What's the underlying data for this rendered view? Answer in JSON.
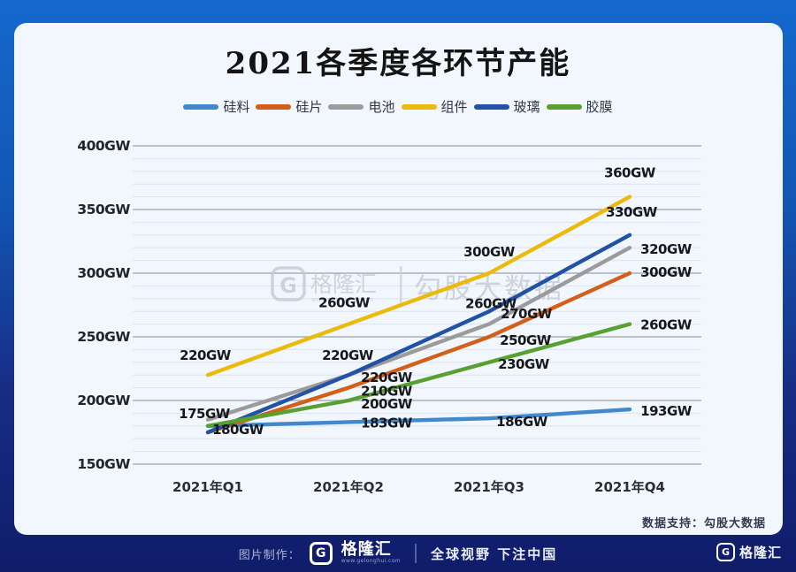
{
  "title": "2021各季度各环节产能",
  "source_note": "数据支持：勾股大数据",
  "frame": {
    "border_top_color": "#1568cd",
    "border_bottom_color": "#101c6a",
    "card_bg": "#f2f7fd",
    "footer_bg": "#111c6d"
  },
  "watermark": {
    "logo_letter": "G",
    "brand": "格隆汇",
    "url": "www.gelonghui.com",
    "text": "勾股大数据"
  },
  "footer": {
    "made_by": "图片制作：",
    "logo_letter": "G",
    "brand": "格隆汇",
    "brand_url": "www.gelonghui.com",
    "slogan": "全球视野 下注中国",
    "corner_logo_letter": "G",
    "corner_brand": "格隆汇"
  },
  "chart_data": {
    "type": "line",
    "title": "2021各季度各环节产能",
    "unit": "GW",
    "categories": [
      "2021年Q1",
      "2021年Q2",
      "2021年Q3",
      "2021年Q4"
    ],
    "ylim": [
      150,
      400
    ],
    "minor_grid_step": 10,
    "grid": true,
    "legend_position": "top",
    "y_ticks": [
      {
        "value": 400,
        "label": "400GW"
      },
      {
        "value": 350,
        "label": "350GW"
      },
      {
        "value": 300,
        "label": "300GW"
      },
      {
        "value": 250,
        "label": "250GW"
      },
      {
        "value": 200,
        "label": "200GW"
      },
      {
        "value": 150,
        "label": "150GW"
      }
    ],
    "series": [
      {
        "name": "硅料",
        "color": "#4189cc",
        "values": [
          180,
          183,
          186,
          193
        ],
        "point_labels": [
          {
            "text": "180GW",
            "dx": 34,
            "dy": 4
          },
          {
            "text": "183GW",
            "dx": 43,
            "dy": 1
          },
          {
            "text": "186GW",
            "dx": 37,
            "dy": 4
          },
          {
            "text": "193GW",
            "dx": 41,
            "dy": 2
          }
        ]
      },
      {
        "name": "硅片",
        "color": "#d2601a",
        "values": [
          175,
          210,
          250,
          300
        ],
        "point_labels": [
          {
            "text": "175GW",
            "dx": -4,
            "dy": -21
          },
          {
            "text": "210GW",
            "dx": 43,
            "dy": 4
          },
          {
            "text": "250GW",
            "dx": 41,
            "dy": 4
          },
          {
            "text": "300GW",
            "dx": 41,
            "dy": -1
          }
        ]
      },
      {
        "name": "电池",
        "color": "#9b9b9b",
        "values": [
          185,
          220,
          260,
          320
        ],
        "point_labels": [
          null,
          {
            "text": "220GW",
            "dx": -1,
            "dy": -22
          },
          {
            "text": "260GW",
            "dx": 2,
            "dy": -23
          },
          {
            "text": "320GW",
            "dx": 41,
            "dy": 2
          }
        ]
      },
      {
        "name": "组件",
        "color": "#ecba0a",
        "values": [
          220,
          260,
          300,
          360
        ],
        "point_labels": [
          {
            "text": "220GW",
            "dx": -3,
            "dy": -22
          },
          {
            "text": "260GW",
            "dx": -5,
            "dy": -24
          },
          {
            "text": "300GW",
            "dx": 0,
            "dy": -24
          },
          {
            "text": "360GW",
            "dx": 0,
            "dy": -27
          }
        ]
      },
      {
        "name": "玻璃",
        "color": "#2152a5",
        "values": [
          175,
          220,
          270,
          330
        ],
        "point_labels": [
          null,
          {
            "text": "220GW",
            "dx": 43,
            "dy": 3
          },
          {
            "text": "270GW",
            "dx": 42,
            "dy": 3
          },
          {
            "text": "330GW",
            "dx": 2,
            "dy": -26
          }
        ]
      },
      {
        "name": "胶膜",
        "color": "#58a02f",
        "values": [
          180,
          200,
          230,
          260
        ],
        "point_labels": [
          null,
          {
            "text": "200GW",
            "dx": 43,
            "dy": 4
          },
          {
            "text": "230GW",
            "dx": 39,
            "dy": 2
          },
          {
            "text": "260GW",
            "dx": 41,
            "dy": 1
          }
        ]
      }
    ]
  }
}
